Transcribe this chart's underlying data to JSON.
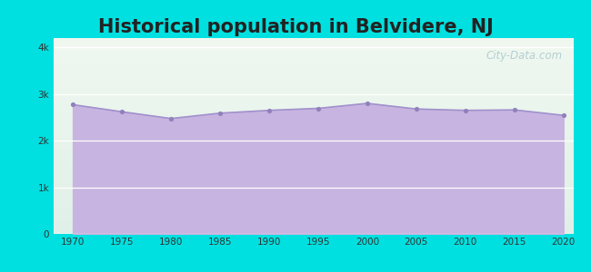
{
  "title": "Historical population in Belvidere, NJ",
  "years": [
    1970,
    1975,
    1980,
    1985,
    1990,
    1995,
    2000,
    2005,
    2010,
    2015,
    2020
  ],
  "population": [
    2772,
    2620,
    2475,
    2590,
    2650,
    2693,
    2800,
    2680,
    2650,
    2660,
    2543
  ],
  "fill_color": "#c8b4e0",
  "line_color": "#a090cc",
  "dot_color": "#9080bb",
  "background_outer": "#00e0e0",
  "chart_bg_bottom": "#f0f8f0",
  "chart_bg_top": "#e0f0e8",
  "title_fontsize": 15,
  "title_color": "#222222",
  "tick_label_color": "#333333",
  "ylim": [
    0,
    4200
  ],
  "yticks": [
    0,
    1000,
    2000,
    3000,
    4000
  ],
  "ytick_labels": [
    "0",
    "1k",
    "2k",
    "3k",
    "4k"
  ],
  "watermark": "City-Data.com"
}
